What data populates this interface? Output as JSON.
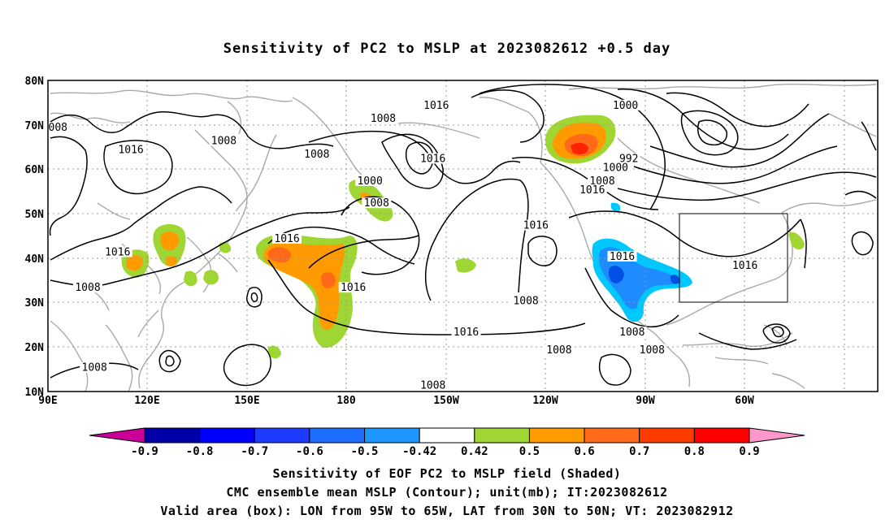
{
  "title": "Sensitivity of PC2 to MSLP at 2023082612 +0.5 day",
  "map": {
    "lat_labels": [
      "80N",
      "70N",
      "60N",
      "50N",
      "40N",
      "30N",
      "20N",
      "10N"
    ],
    "lon_labels": [
      "90E",
      "120E",
      "150E",
      "180",
      "150W",
      "120W",
      "90W",
      "60W"
    ],
    "lon_range": [
      90,
      340
    ],
    "lat_range": [
      10,
      80
    ],
    "contour_interval_mb": 8,
    "contour_labels": [
      {
        "text": "008",
        "lon": 93,
        "lat": 69
      },
      {
        "text": "1016",
        "lon": 115,
        "lat": 64
      },
      {
        "text": "1008",
        "lon": 143,
        "lat": 66
      },
      {
        "text": "1008",
        "lon": 171,
        "lat": 63
      },
      {
        "text": "1008",
        "lon": 191,
        "lat": 71
      },
      {
        "text": "1016",
        "lon": 207,
        "lat": 74
      },
      {
        "text": "1000",
        "lon": 264,
        "lat": 74
      },
      {
        "text": "992",
        "lon": 265,
        "lat": 62
      },
      {
        "text": "1000",
        "lon": 261,
        "lat": 60
      },
      {
        "text": "1008",
        "lon": 257,
        "lat": 57
      },
      {
        "text": "1016",
        "lon": 254,
        "lat": 55
      },
      {
        "text": "1000",
        "lon": 187,
        "lat": 57
      },
      {
        "text": "1016",
        "lon": 206,
        "lat": 62
      },
      {
        "text": "1008",
        "lon": 189,
        "lat": 52
      },
      {
        "text": "1016",
        "lon": 237,
        "lat": 47
      },
      {
        "text": "1016",
        "lon": 111,
        "lat": 41
      },
      {
        "text": "1016",
        "lon": 162,
        "lat": 44
      },
      {
        "text": "1016",
        "lon": 263,
        "lat": 40
      },
      {
        "text": "1016",
        "lon": 300,
        "lat": 38
      },
      {
        "text": "1008",
        "lon": 102,
        "lat": 33
      },
      {
        "text": "1016",
        "lon": 182,
        "lat": 33
      },
      {
        "text": "1008",
        "lon": 234,
        "lat": 30
      },
      {
        "text": "1016",
        "lon": 216,
        "lat": 23
      },
      {
        "text": "1008",
        "lon": 266,
        "lat": 23
      },
      {
        "text": "1008",
        "lon": 244,
        "lat": 19
      },
      {
        "text": "1008",
        "lon": 272,
        "lat": 19
      },
      {
        "text": "1008",
        "lon": 206,
        "lat": 11
      },
      {
        "text": "1008",
        "lon": 104,
        "lat": 15
      }
    ],
    "valid_box": {
      "lon": [
        265,
        295
      ],
      "lat": [
        30,
        50
      ]
    },
    "shading": {
      "positive_green": "#a0d633",
      "positive_light_orange": "#ff9a00",
      "positive_orange": "#ff6a1a",
      "positive_red": "#ff2200",
      "negative_light_blue": "#00c8ff",
      "negative_blue": "#1e8cff",
      "negative_dark_blue": "#0050e6",
      "contour_color": "#000000",
      "coast_color": "#a9a9a9",
      "grid_color": "#999999"
    }
  },
  "colorbar": {
    "labels": [
      "-0.9",
      "-0.8",
      "-0.7",
      "-0.6",
      "-0.5",
      "-0.42",
      "0.42",
      "0.5",
      "0.6",
      "0.7",
      "0.8",
      "0.9"
    ],
    "left_arrow_color": "#cc0099",
    "right_arrow_color": "#ff99cc",
    "colors": [
      "#0000a8",
      "#0000ff",
      "#1e3cff",
      "#1e6eff",
      "#1e96ff",
      "#00c8ff",
      "#ffffff",
      "#a0d633",
      "#ff9a00",
      "#ff6a1a",
      "#ff3c00",
      "#ff0000"
    ]
  },
  "captions": {
    "line1": "Sensitivity of EOF PC2 to MSLP field (Shaded)",
    "line2": "CMC ensemble mean MSLP (Contour); unit(mb); IT:2023082612",
    "line3": "Valid area (box): LON from 95W to 65W, LAT from 30N to 50N; VT: 2023082912"
  }
}
